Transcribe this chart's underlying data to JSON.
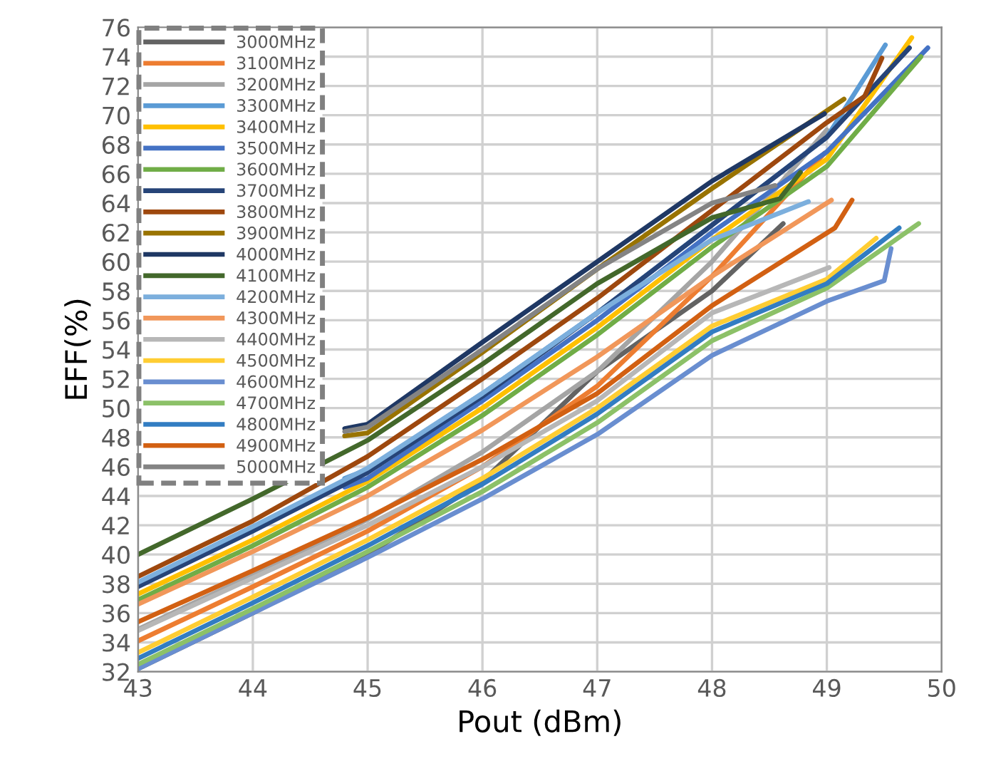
{
  "chart_data": {
    "type": "line",
    "xlabel": "Pout (dBm)",
    "ylabel": "EFF(%)",
    "xlim": [
      43,
      50
    ],
    "xticks": [
      43,
      44,
      45,
      46,
      47,
      48,
      49,
      50
    ],
    "ylim": [
      32,
      76
    ],
    "yticks": [
      32,
      34,
      36,
      38,
      40,
      42,
      44,
      46,
      48,
      50,
      52,
      54,
      56,
      58,
      60,
      62,
      64,
      66,
      68,
      70,
      72,
      74,
      76
    ],
    "grid": true,
    "legend": "top left",
    "marker": "none",
    "line_style": "solid",
    "series": [
      {
        "name": "3000MHz",
        "color": "#636363",
        "x": [
          43,
          44,
          45,
          46,
          47,
          48,
          48.62
        ],
        "values": [
          32.2,
          36,
          40,
          45,
          52.5,
          58,
          62.6
        ]
      },
      {
        "name": "3100MHz",
        "color": "#ed7d31",
        "x": [
          43,
          44,
          45,
          46,
          47,
          48,
          48.98
        ],
        "values": [
          34.1,
          37.8,
          41.6,
          46,
          51.5,
          59,
          67.4
        ]
      },
      {
        "name": "3200MHz",
        "color": "#a5a5a5",
        "x": [
          43,
          44,
          45,
          46,
          47,
          48,
          49
        ],
        "values": [
          34.9,
          38.6,
          42.4,
          47,
          52.5,
          60,
          69
        ]
      },
      {
        "name": "3300MHz",
        "color": "#5b9bd5",
        "x": [
          44.8,
          45,
          46,
          47,
          48,
          49,
          49.51
        ],
        "values": [
          45.2,
          45.8,
          51,
          56.5,
          62.5,
          68.5,
          74.8
        ]
      },
      {
        "name": "3400MHz",
        "color": "#ffc000",
        "x": [
          43,
          44,
          45,
          46,
          47,
          48,
          49,
          49.74
        ],
        "values": [
          37.3,
          41,
          45,
          50,
          55.5,
          61.5,
          67,
          75.3
        ]
      },
      {
        "name": "3500MHz",
        "color": "#4472c4",
        "x": [
          44.8,
          45,
          46,
          47,
          48,
          49,
          49.88
        ],
        "values": [
          44.6,
          45.2,
          50.5,
          56,
          62,
          67.5,
          74.6
        ]
      },
      {
        "name": "3600MHz",
        "color": "#70ad47",
        "x": [
          43,
          44,
          45,
          46,
          47,
          48,
          49,
          49.82
        ],
        "values": [
          36.9,
          40.6,
          44.6,
          49.5,
          55,
          61,
          66.5,
          74
        ]
      },
      {
        "name": "3700MHz",
        "color": "#264478",
        "x": [
          43,
          44,
          45,
          46,
          47,
          48,
          49,
          49.72
        ],
        "values": [
          37.8,
          41.6,
          45.6,
          50.8,
          56.5,
          62.5,
          68.5,
          74.6
        ]
      },
      {
        "name": "3800MHz",
        "color": "#9e480e",
        "x": [
          43,
          44,
          45,
          46,
          47,
          48,
          49,
          49.33,
          49.48
        ],
        "values": [
          38.5,
          42.3,
          46.7,
          52,
          57.5,
          63.5,
          69.5,
          71.3,
          73.9
        ]
      },
      {
        "name": "3900MHz",
        "color": "#997300",
        "x": [
          44.8,
          45,
          46,
          47,
          48,
          49.15
        ],
        "values": [
          48.1,
          48.3,
          53.8,
          59.5,
          65,
          71.1
        ]
      },
      {
        "name": "4000MHz",
        "color": "#1f3864",
        "x": [
          44.8,
          45,
          46,
          47,
          48,
          48.98
        ],
        "values": [
          48.6,
          48.9,
          54.5,
          60,
          65.5,
          70.1
        ]
      },
      {
        "name": "4100MHz",
        "color": "#43682b",
        "x": [
          43,
          44,
          45,
          46,
          47,
          48,
          48.59,
          48.77
        ],
        "values": [
          40,
          43.8,
          47.8,
          53,
          58.5,
          63,
          64.3,
          66.1
        ]
      },
      {
        "name": "4200MHz",
        "color": "#7cafdd",
        "x": [
          43,
          44,
          45,
          46,
          47,
          48,
          48.84
        ],
        "values": [
          38.1,
          41.9,
          45.9,
          51,
          56.5,
          61.5,
          64.1
        ]
      },
      {
        "name": "4300MHz",
        "color": "#f1975a",
        "x": [
          43,
          44,
          45,
          46,
          47,
          48,
          49.04
        ],
        "values": [
          36.6,
          40.2,
          44,
          48.5,
          53.5,
          59,
          64.2
        ]
      },
      {
        "name": "4400MHz",
        "color": "#b7b7b7",
        "x": [
          43,
          44,
          45,
          46,
          47,
          48,
          49.02
        ],
        "values": [
          34.8,
          38.4,
          42,
          46,
          50.5,
          56.5,
          59.6
        ]
      },
      {
        "name": "4500MHz",
        "color": "#ffcd33",
        "x": [
          43,
          44,
          45,
          46,
          47,
          48,
          49,
          49.43
        ],
        "values": [
          33.3,
          37.1,
          41,
          45.2,
          50,
          55.6,
          58.8,
          61.6
        ]
      },
      {
        "name": "4600MHz",
        "color": "#698ed0",
        "x": [
          43,
          44,
          45,
          46,
          47,
          48,
          49,
          49.5,
          49.56
        ],
        "values": [
          32.2,
          36,
          39.8,
          43.8,
          48.2,
          53.6,
          57.3,
          58.7,
          60.9
        ]
      },
      {
        "name": "4700MHz",
        "color": "#8cc168",
        "x": [
          43,
          44,
          45,
          46,
          47,
          48,
          49,
          49.8
        ],
        "values": [
          32.5,
          36.3,
          40.2,
          44.3,
          49,
          54.6,
          58.2,
          62.6
        ]
      },
      {
        "name": "4800MHz",
        "color": "#327dc2",
        "x": [
          43,
          44,
          45,
          46,
          47,
          48,
          49,
          49.63
        ],
        "values": [
          32.9,
          36.7,
          40.6,
          44.8,
          49.6,
          55.2,
          58.5,
          62.3
        ]
      },
      {
        "name": "4900MHz",
        "color": "#d26012",
        "x": [
          43,
          44,
          45,
          46,
          47,
          48,
          49.07,
          49.22
        ],
        "values": [
          35.4,
          38.9,
          42.5,
          46.5,
          51,
          57,
          62.3,
          64.2
        ]
      },
      {
        "name": "5000MHz",
        "color": "#848484",
        "x": [
          44.8,
          45,
          46,
          47,
          48,
          48.55
        ],
        "values": [
          48.4,
          48.7,
          54,
          59.5,
          64,
          65.2
        ]
      }
    ]
  }
}
